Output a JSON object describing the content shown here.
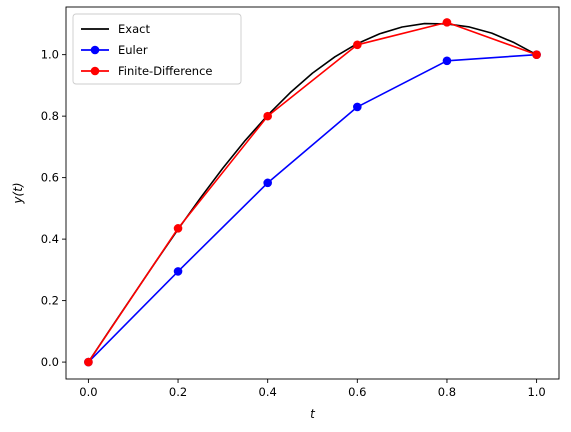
{
  "chart_data": {
    "type": "line",
    "title": "",
    "xlabel": "t",
    "ylabel": "y(t)",
    "xlim": [
      -0.05,
      1.05
    ],
    "ylim": [
      -0.055,
      1.155
    ],
    "xticks": [
      0.0,
      0.2,
      0.4,
      0.6,
      0.8,
      1.0
    ],
    "xtick_labels": [
      "0.0",
      "0.2",
      "0.4",
      "0.6",
      "0.8",
      "1.0"
    ],
    "yticks": [
      0.0,
      0.2,
      0.4,
      0.6,
      0.8,
      1.0
    ],
    "ytick_labels": [
      "0.0",
      "0.2",
      "0.4",
      "0.6",
      "0.8",
      "1.0"
    ],
    "grid": false,
    "legend_position": "top-left",
    "series": [
      {
        "name": "Exact",
        "color": "#000000",
        "marker": "none",
        "x": [
          0.0,
          0.05,
          0.1,
          0.15,
          0.2,
          0.25,
          0.3,
          0.35,
          0.4,
          0.45,
          0.5,
          0.55,
          0.6,
          0.65,
          0.7,
          0.75,
          0.8,
          0.85,
          0.9,
          0.95,
          1.0
        ],
        "y": [
          0.0,
          0.11,
          0.218,
          0.326,
          0.432,
          0.534,
          0.631,
          0.721,
          0.803,
          0.876,
          0.94,
          0.993,
          1.036,
          1.068,
          1.09,
          1.101,
          1.1,
          1.09,
          1.07,
          1.039,
          1.0
        ]
      },
      {
        "name": "Euler",
        "color": "#0000ff",
        "marker": "circle",
        "x": [
          0.0,
          0.2,
          0.4,
          0.6,
          0.8,
          1.0
        ],
        "y": [
          0.0,
          0.295,
          0.583,
          0.83,
          0.98,
          1.0
        ]
      },
      {
        "name": "Finite-Difference",
        "color": "#ff0000",
        "marker": "circle",
        "x": [
          0.0,
          0.2,
          0.4,
          0.6,
          0.8,
          1.0
        ],
        "y": [
          0.0,
          0.435,
          0.8,
          1.032,
          1.105,
          1.0
        ]
      }
    ]
  }
}
